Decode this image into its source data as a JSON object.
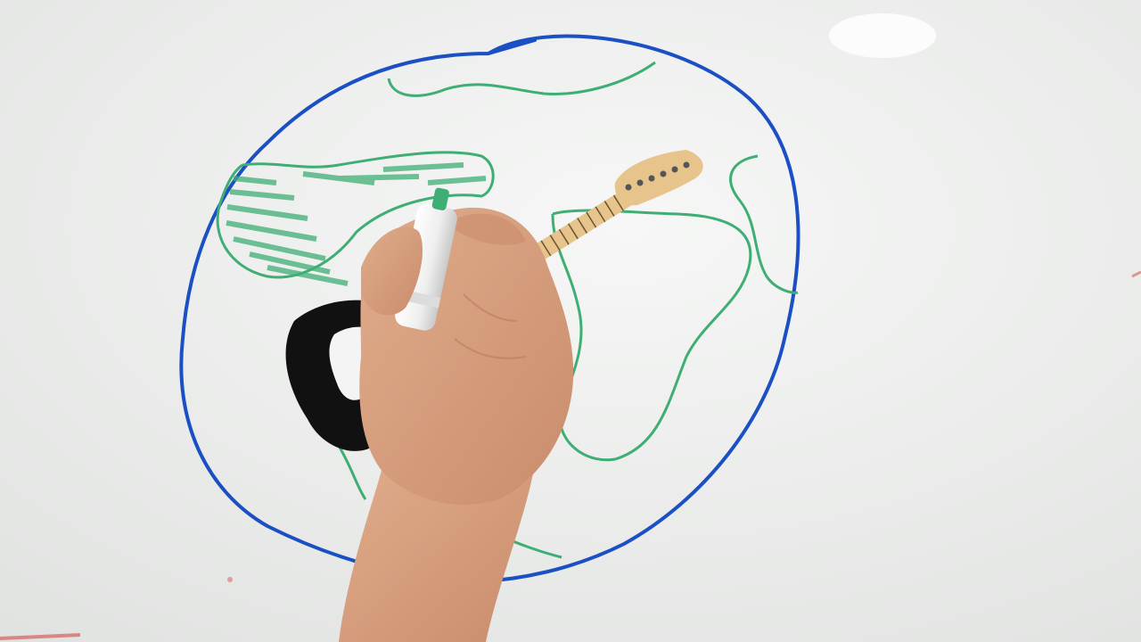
{
  "scene": {
    "subject": "whiteboard-drawing-with-guitar",
    "colors": {
      "board": "#eceeec",
      "board_shadow": "#dfe1df",
      "circle_ink": "#1b4fc4",
      "land_ink": "#3fae74",
      "guitar_neck": "#e6c48c",
      "fret_wire": "#6b5330",
      "pickguard": "#f4f4f4",
      "guitar_body": "#111111",
      "skin": "#e0ad8c",
      "skin_shadow": "#c98c6c",
      "marker_body": "#f2f2f2",
      "marker_cap": "#dcdcdc",
      "smudge_red": "#d9706b"
    },
    "icons": [
      "guitar-icon",
      "hand-icon",
      "marker-icon"
    ]
  }
}
